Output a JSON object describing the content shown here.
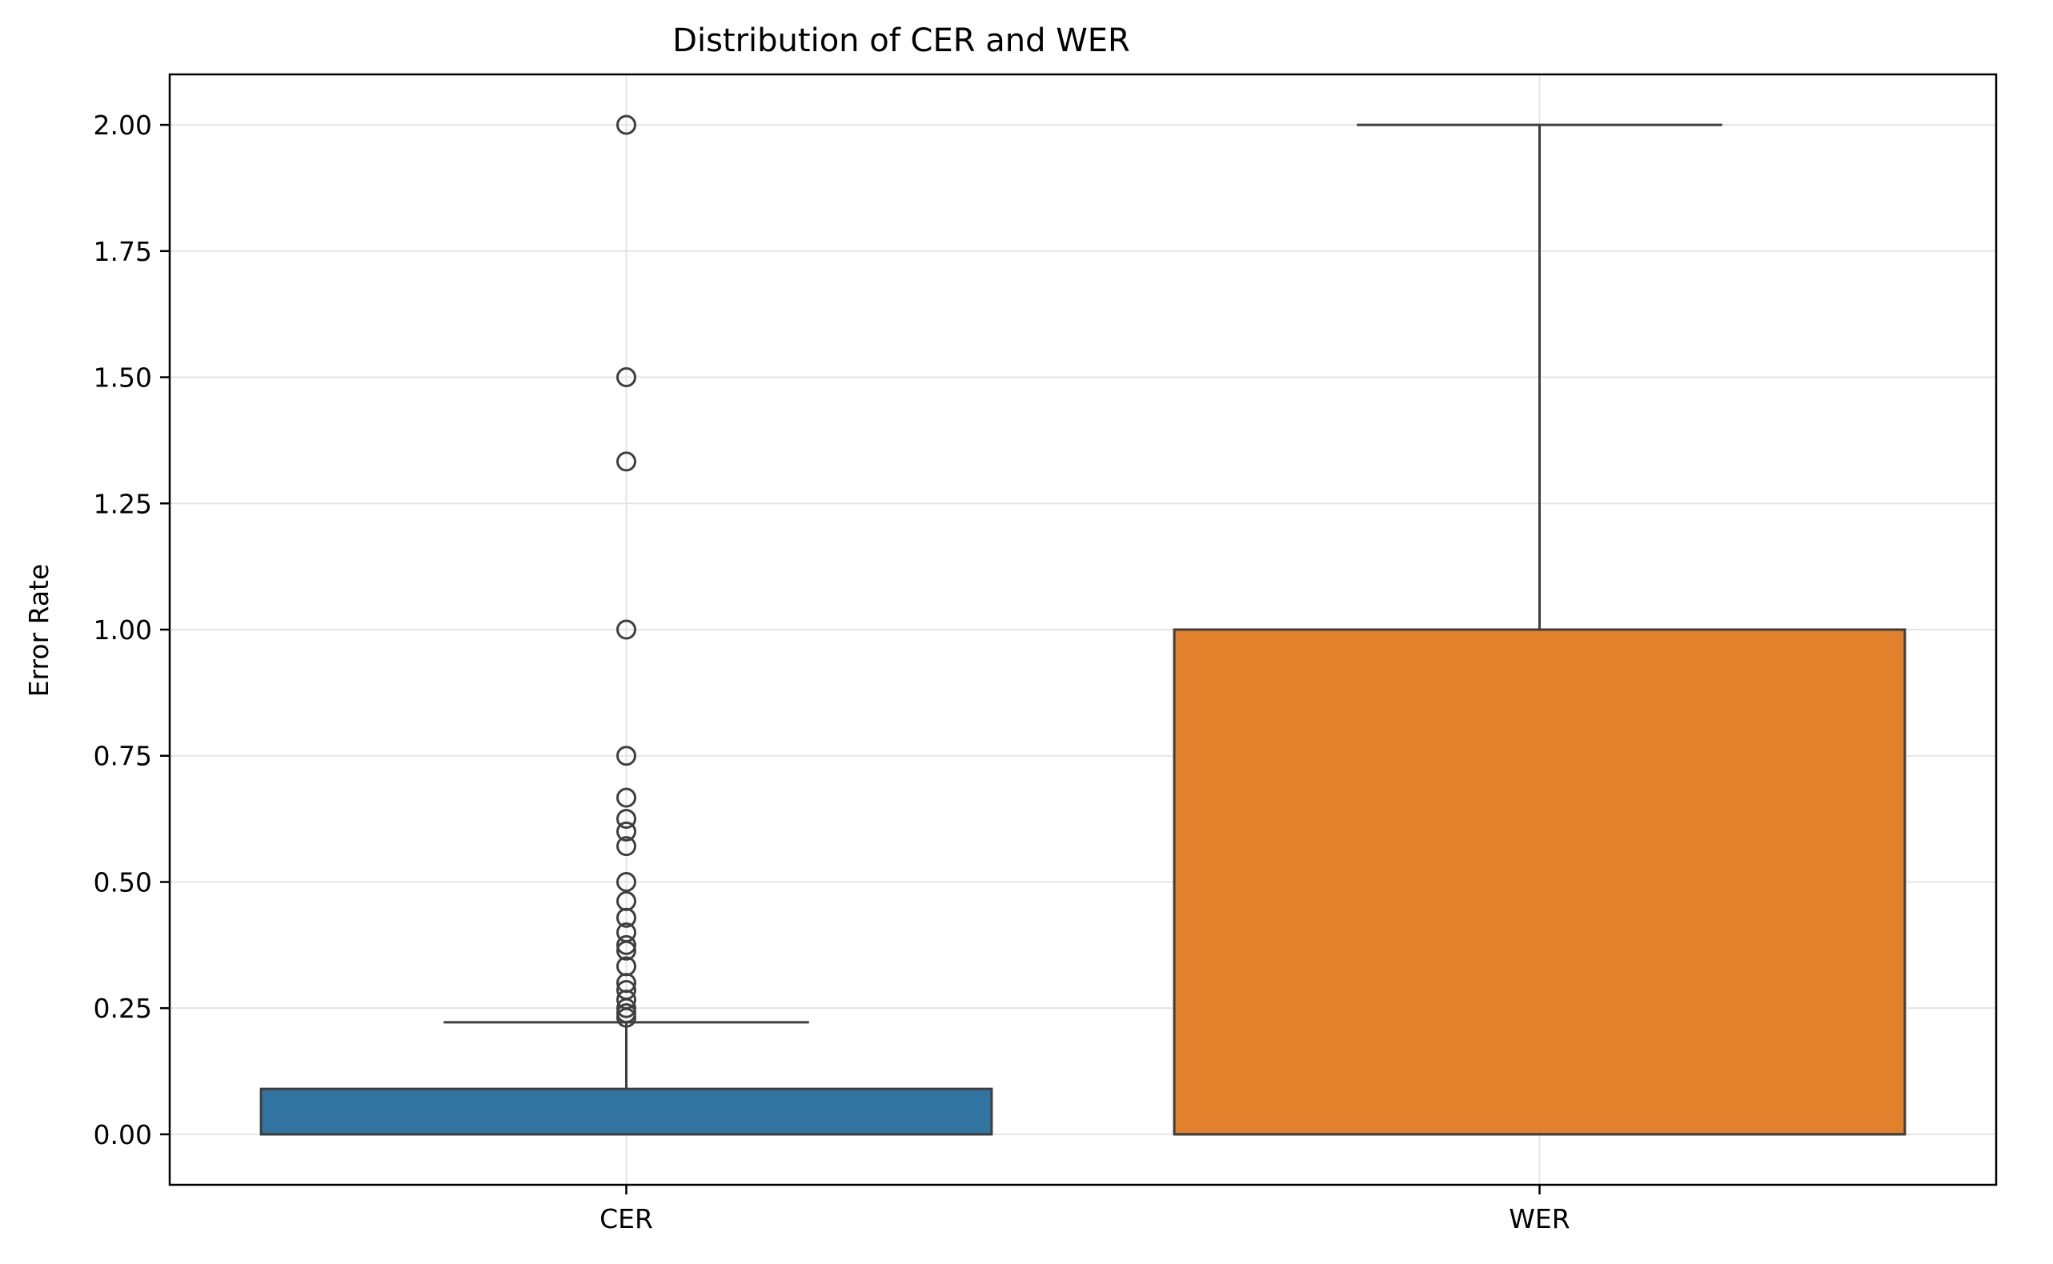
{
  "chart_data": {
    "type": "box",
    "title": "Distribution of CER and WER",
    "xlabel": "",
    "ylabel": "Error Rate",
    "ylim": [
      -0.1,
      2.1
    ],
    "yticks": [
      0.0,
      0.25,
      0.5,
      0.75,
      1.0,
      1.25,
      1.5,
      1.75,
      2.0
    ],
    "ytick_labels": [
      "0.00",
      "0.25",
      "0.50",
      "0.75",
      "1.00",
      "1.25",
      "1.50",
      "1.75",
      "2.00"
    ],
    "grid": true,
    "categories": [
      "CER",
      "WER"
    ],
    "boxes": [
      {
        "category": "CER",
        "color": "#3274a1",
        "whislo": 0.0,
        "q1": 0.0,
        "med": 0.0,
        "q3": 0.09,
        "whishi": 0.222,
        "fliers": [
          0.231,
          0.24,
          0.25,
          0.267,
          0.286,
          0.3,
          0.333,
          0.364,
          0.375,
          0.4,
          0.429,
          0.462,
          0.5,
          0.571,
          0.6,
          0.625,
          0.667,
          0.75,
          1.0,
          1.333,
          1.5,
          2.0
        ]
      },
      {
        "category": "WER",
        "color": "#e1812c",
        "whislo": 0.0,
        "q1": 0.0,
        "med": 0.0,
        "q3": 1.0,
        "whishi": 2.0,
        "fliers": []
      }
    ]
  }
}
